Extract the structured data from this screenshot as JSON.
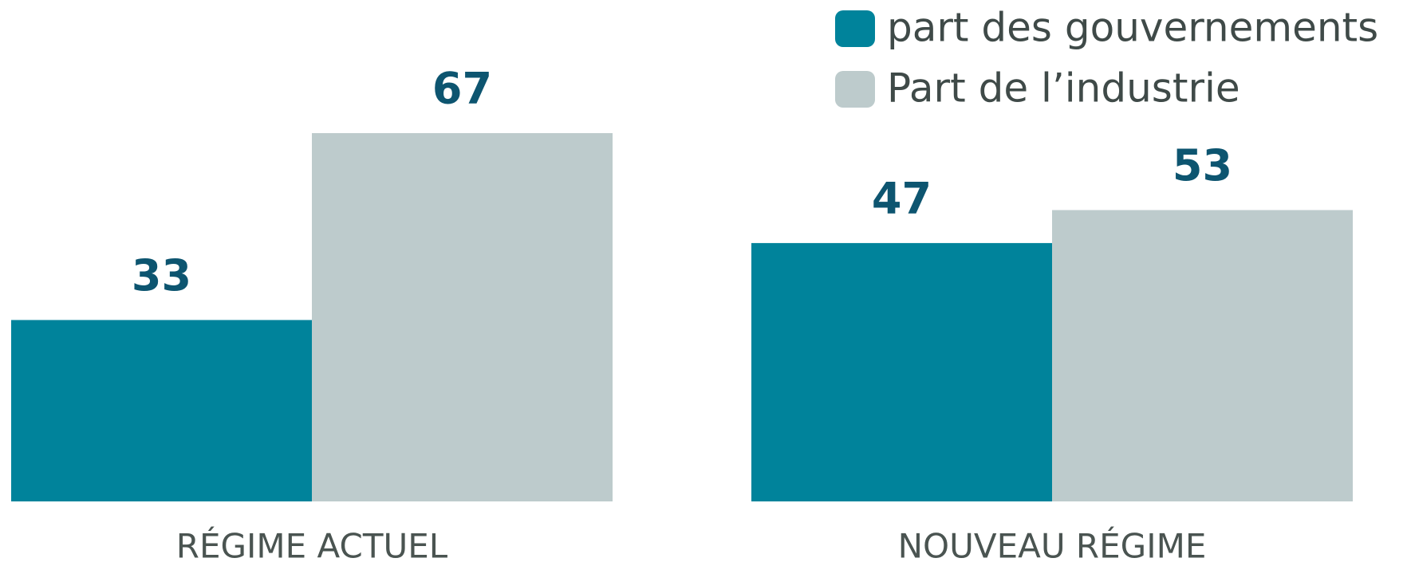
{
  "chart_data": {
    "type": "bar",
    "categories": [
      "RÉGIME ACTUEL",
      "NOUVEAU RÉGIME"
    ],
    "series": [
      {
        "name": "part des gouvernements",
        "color": "#00839b",
        "values": [
          33,
          47
        ]
      },
      {
        "name": "Part de l’industrie",
        "color": "#bdcbcc",
        "values": [
          67,
          53
        ]
      }
    ],
    "legend": "upper right"
  }
}
